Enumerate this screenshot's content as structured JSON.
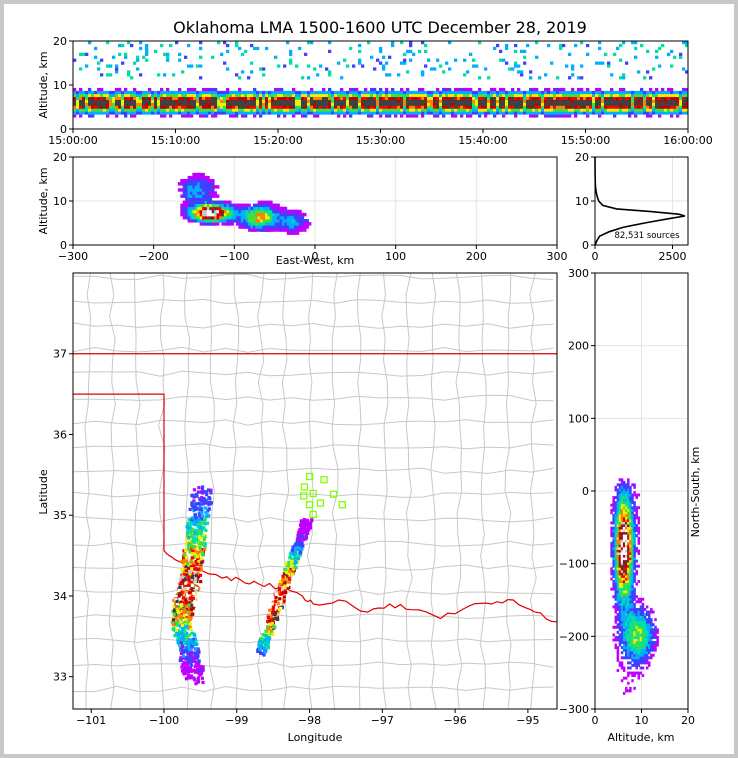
{
  "title": "Oklahoma LMA 1500-1600 UTC December 28, 2019",
  "colors": {
    "density": [
      "#c000ff",
      "#4040ff",
      "#00b0ff",
      "#00e0a0",
      "#40e040",
      "#f0f000",
      "#ff8000",
      "#ff0000",
      "#c00000",
      "#404040",
      "#c8c8c8",
      "#ffffff"
    ],
    "border_state": "#e00000",
    "county": "#c8c8c8",
    "stations": "#80ff00"
  },
  "chart_data": [
    {
      "id": "time-height",
      "type": "heatmap",
      "xlabel": "",
      "ylabel": "Altitude, km",
      "x_tick_labels": [
        "15:00:00",
        "15:10:00",
        "15:20:00",
        "15:30:00",
        "15:40:00",
        "15:50:00",
        "16:00:00"
      ],
      "x_range_minutes": [
        0,
        60
      ],
      "ylim": [
        0,
        20
      ],
      "y_ticks": [
        0,
        10,
        20
      ],
      "altitude_core_km": [
        3,
        9
      ]
    },
    {
      "id": "east-west-altitude",
      "type": "heatmap",
      "xlabel": "East-West, km",
      "ylabel": "Altitude, km",
      "xlim": [
        -300,
        300
      ],
      "x_ticks": [
        -300,
        -200,
        -100,
        0,
        100,
        200,
        300
      ],
      "ylim": [
        0,
        20
      ],
      "y_ticks": [
        0,
        10,
        20
      ],
      "blobs": [
        {
          "x": -130,
          "alt": 7,
          "sx": 22,
          "sz": 1.6,
          "weight": 5
        },
        {
          "x": -70,
          "alt": 6,
          "sx": 20,
          "sz": 2.2,
          "weight": 2.5
        },
        {
          "x": -150,
          "alt": 12,
          "sx": 18,
          "sz": 3,
          "weight": 1
        },
        {
          "x": -30,
          "alt": 5,
          "sx": 14,
          "sz": 2.2,
          "weight": 1
        }
      ]
    },
    {
      "id": "altitude-histogram",
      "type": "line",
      "xlim": [
        0,
        3000
      ],
      "x_ticks": [
        0,
        2500
      ],
      "ylim": [
        0,
        20
      ],
      "y_ticks": [
        0,
        10,
        20
      ],
      "annotation": "82,531 sources",
      "profile": [
        {
          "alt": 0,
          "count": 0
        },
        {
          "alt": 1,
          "count": 60
        },
        {
          "alt": 2,
          "count": 150
        },
        {
          "alt": 3,
          "count": 450
        },
        {
          "alt": 4,
          "count": 900
        },
        {
          "alt": 5,
          "count": 1600
        },
        {
          "alt": 6,
          "count": 2400
        },
        {
          "alt": 6.6,
          "count": 2900
        },
        {
          "alt": 7,
          "count": 2700
        },
        {
          "alt": 7.6,
          "count": 1800
        },
        {
          "alt": 8.2,
          "count": 700
        },
        {
          "alt": 9,
          "count": 250
        },
        {
          "alt": 10,
          "count": 120
        },
        {
          "alt": 11,
          "count": 70
        },
        {
          "alt": 12,
          "count": 40
        },
        {
          "alt": 13,
          "count": 20
        },
        {
          "alt": 14,
          "count": 10
        },
        {
          "alt": 16,
          "count": 3
        },
        {
          "alt": 20,
          "count": 0
        }
      ]
    },
    {
      "id": "plan-view-map",
      "type": "heatmap",
      "xlabel": "Longitude",
      "ylabel": "Latitude",
      "xlim": [
        -101.25,
        -94.6
      ],
      "x_ticks": [
        -101,
        -100,
        -99,
        -98,
        -97,
        -96,
        -95
      ],
      "ylim": [
        32.6,
        38.0
      ],
      "y_ticks": [
        33,
        34,
        35,
        36,
        37
      ],
      "line1": [
        [
          -99.5,
          35.3
        ],
        [
          -99.65,
          34.3
        ],
        [
          -99.78,
          33.75
        ],
        [
          -99.6,
          33.0
        ]
      ],
      "line2": [
        [
          -98.05,
          34.95
        ],
        [
          -98.35,
          34.2
        ],
        [
          -98.7,
          33.3
        ]
      ],
      "stations": [
        [
          -98.0,
          35.48
        ],
        [
          -97.8,
          35.44
        ],
        [
          -98.07,
          35.35
        ],
        [
          -97.95,
          35.27
        ],
        [
          -98.08,
          35.24
        ],
        [
          -97.67,
          35.26
        ],
        [
          -97.85,
          35.15
        ],
        [
          -98.0,
          35.13
        ],
        [
          -97.55,
          35.13
        ],
        [
          -97.95,
          35.01
        ]
      ]
    },
    {
      "id": "altitude-north-south",
      "type": "heatmap",
      "xlabel": "Altitude, km",
      "ylabel": "North-South, km",
      "xlim": [
        0,
        20
      ],
      "x_ticks": [
        0,
        10,
        20
      ],
      "ylim": [
        -300,
        300
      ],
      "y_ticks": [
        -300,
        -200,
        -100,
        0,
        100,
        200,
        300
      ],
      "blobs": [
        {
          "alt": 6,
          "y": -80,
          "sa": 1.6,
          "sy": 60,
          "weight": 5
        },
        {
          "alt": 9,
          "y": -200,
          "sa": 3,
          "sy": 30,
          "weight": 2
        }
      ]
    }
  ]
}
